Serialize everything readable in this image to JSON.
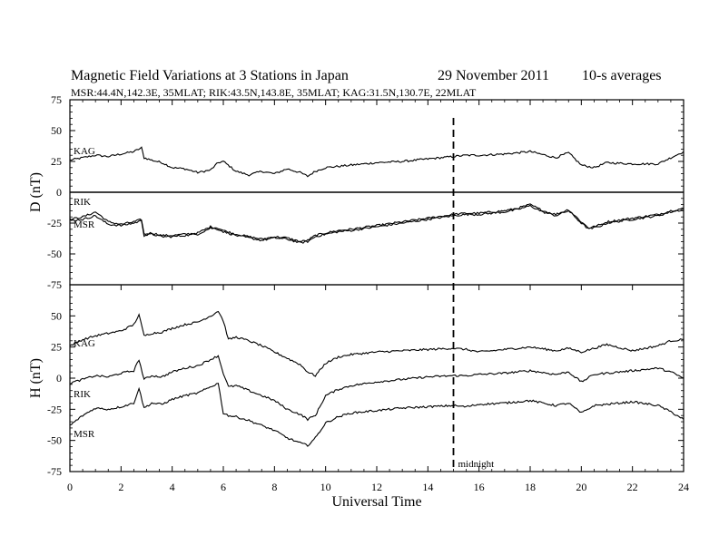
{
  "header": {
    "title": "Magnetic Field Variations at 3 Stations in Japan",
    "date": "29 November 2011",
    "averaging": "10-s averages",
    "stations_line": "MSR:44.4N,142.3E, 35MLAT;  RIK:43.5N,143.8E, 35MLAT;  KAG:31.5N,130.7E, 22MLAT"
  },
  "chart_data": [
    {
      "type": "line",
      "panel": "top",
      "ylabel": "D (nT)",
      "ylim": [
        -75,
        75
      ],
      "yticks": [
        75,
        50,
        25,
        0,
        -25,
        -50,
        -75
      ],
      "zero_line": true,
      "series": [
        {
          "name": "KAG",
          "x": [
            0,
            0.5,
            1,
            1.5,
            2,
            2.5,
            2.8,
            2.9,
            3.2,
            3.6,
            4,
            4.5,
            5,
            5.5,
            5.8,
            6,
            6.5,
            7,
            7.5,
            8,
            8.5,
            9,
            9.3,
            9.6,
            10,
            10.5,
            11,
            12,
            13,
            14,
            15,
            15.5,
            16,
            17,
            18,
            19,
            19.5,
            20,
            20.5,
            21,
            22,
            23,
            23.5,
            24
          ],
          "y": [
            26,
            28,
            30,
            29,
            31,
            33,
            36,
            28,
            26,
            24,
            20,
            19,
            16,
            18,
            24,
            25,
            17,
            14,
            17,
            15,
            19,
            16,
            13,
            17,
            20,
            21,
            22,
            24,
            25,
            27,
            29,
            30,
            30,
            31,
            33,
            28,
            32,
            22,
            20,
            24,
            23,
            23,
            28,
            33
          ]
        },
        {
          "name": "RIK",
          "x": [
            0,
            0.5,
            1,
            1.2,
            1.5,
            2,
            2.5,
            2.8,
            2.9,
            3.2,
            3.6,
            4,
            4.5,
            5,
            5.5,
            5.8,
            6,
            6.5,
            7,
            7.5,
            8,
            8.5,
            9,
            9.3,
            9.6,
            10,
            10.5,
            11,
            12,
            13,
            14,
            15,
            15.5,
            16,
            17,
            17.5,
            18,
            18.5,
            19,
            19.5,
            20,
            20.3,
            20.8,
            21,
            22,
            23,
            23.5,
            24
          ],
          "y": [
            -22,
            -20,
            -16,
            -19,
            -24,
            -26,
            -24,
            -22,
            -34,
            -33,
            -35,
            -35,
            -34,
            -33,
            -28,
            -29,
            -31,
            -34,
            -36,
            -38,
            -36,
            -37,
            -40,
            -39,
            -35,
            -33,
            -31,
            -30,
            -27,
            -24,
            -21,
            -18,
            -17,
            -17,
            -15,
            -13,
            -10,
            -15,
            -18,
            -14,
            -24,
            -29,
            -26,
            -24,
            -21,
            -18,
            -15,
            -13
          ]
        },
        {
          "name": "MSR",
          "x": [
            0,
            0.5,
            1,
            1.2,
            1.5,
            2,
            2.5,
            2.8,
            2.9,
            3.2,
            3.6,
            4,
            4.5,
            5,
            5.5,
            5.8,
            6,
            6.5,
            7,
            7.5,
            8,
            8.5,
            9,
            9.3,
            9.6,
            10,
            10.5,
            11,
            12,
            13,
            14,
            15,
            15.5,
            16,
            17,
            17.5,
            18,
            18.5,
            19,
            19.5,
            20,
            20.3,
            20.8,
            21,
            22,
            23,
            23.5,
            24
          ],
          "y": [
            -23,
            -22,
            -19,
            -22,
            -26,
            -27,
            -25,
            -23,
            -35,
            -34,
            -36,
            -36,
            -35,
            -34,
            -29,
            -30,
            -32,
            -35,
            -37,
            -39,
            -37,
            -38,
            -41,
            -40,
            -36,
            -34,
            -32,
            -31,
            -28,
            -25,
            -22,
            -19,
            -18,
            -18,
            -16,
            -14,
            -11,
            -16,
            -19,
            -15,
            -25,
            -30,
            -27,
            -25,
            -22,
            -19,
            -16,
            -14
          ]
        }
      ]
    },
    {
      "type": "line",
      "panel": "bottom",
      "ylabel": "H (nT)",
      "ylim": [
        -75,
        75
      ],
      "yticks": [
        75,
        50,
        25,
        0,
        -25,
        -50,
        -75
      ],
      "xlabel": "Universal Time",
      "xlim": [
        0,
        24
      ],
      "xticks": [
        0,
        2,
        4,
        6,
        8,
        10,
        12,
        14,
        16,
        18,
        20,
        22,
        24
      ],
      "series": [
        {
          "name": "KAG",
          "x": [
            0,
            0.5,
            1,
            1.5,
            2,
            2.5,
            2.7,
            2.9,
            3.2,
            3.6,
            4,
            4.5,
            5,
            5.3,
            5.6,
            5.8,
            6,
            6.2,
            6.5,
            7,
            7.5,
            8,
            8.5,
            9,
            9.3,
            9.6,
            10,
            10.5,
            11,
            12,
            13,
            14,
            15,
            15.5,
            16,
            17,
            18,
            19,
            19.5,
            20,
            20.5,
            21,
            22,
            23,
            23.5,
            24
          ],
          "y": [
            26,
            31,
            34,
            36,
            38,
            43,
            51,
            34,
            36,
            37,
            40,
            43,
            45,
            48,
            51,
            54,
            46,
            31,
            33,
            30,
            26,
            21,
            16,
            11,
            5,
            2,
            12,
            17,
            19,
            21,
            22,
            23,
            24,
            23,
            21,
            23,
            25,
            22,
            24,
            21,
            24,
            27,
            22,
            26,
            30,
            31
          ]
        },
        {
          "name": "RIK",
          "x": [
            0,
            0.5,
            1,
            1.5,
            2,
            2.5,
            2.7,
            2.9,
            3.2,
            3.6,
            4,
            4.5,
            5,
            5.3,
            5.6,
            5.8,
            6,
            6.2,
            6.5,
            7,
            7.5,
            8,
            8.5,
            9,
            9.3,
            9.6,
            10,
            10.5,
            11,
            12,
            13,
            14,
            15,
            15.5,
            16,
            17,
            18,
            19,
            19.5,
            20,
            20.5,
            21,
            22,
            23,
            23.5,
            24
          ],
          "y": [
            -4,
            -1,
            2,
            1,
            4,
            6,
            15,
            -1,
            2,
            1,
            5,
            8,
            10,
            13,
            16,
            18,
            4,
            -7,
            -6,
            -10,
            -14,
            -18,
            -25,
            -29,
            -33,
            -30,
            -14,
            -9,
            -6,
            -3,
            -1,
            1,
            2,
            2,
            3,
            4,
            6,
            3,
            5,
            -3,
            3,
            4,
            6,
            8,
            5,
            0
          ]
        },
        {
          "name": "MSR",
          "x": [
            0,
            0.5,
            1,
            1.5,
            2,
            2.5,
            2.7,
            2.9,
            3.2,
            3.6,
            4,
            4.5,
            5,
            5.3,
            5.6,
            5.8,
            6,
            6.2,
            6.5,
            7,
            7.5,
            8,
            8.5,
            9,
            9.3,
            9.6,
            10,
            10.5,
            11,
            12,
            13,
            14,
            15,
            15.5,
            16,
            17,
            18,
            19,
            19.5,
            20,
            20.5,
            21,
            22,
            23,
            23.5,
            24
          ],
          "y": [
            -38,
            -30,
            -24,
            -25,
            -23,
            -20,
            -8,
            -24,
            -20,
            -21,
            -17,
            -14,
            -12,
            -9,
            -6,
            -4,
            -28,
            -30,
            -31,
            -34,
            -38,
            -42,
            -48,
            -52,
            -54,
            -48,
            -36,
            -31,
            -28,
            -26,
            -24,
            -23,
            -22,
            -23,
            -21,
            -20,
            -18,
            -22,
            -20,
            -28,
            -22,
            -21,
            -19,
            -22,
            -27,
            -33
          ]
        }
      ]
    }
  ],
  "midnight_marker": {
    "x": 15,
    "label": "midnight"
  }
}
